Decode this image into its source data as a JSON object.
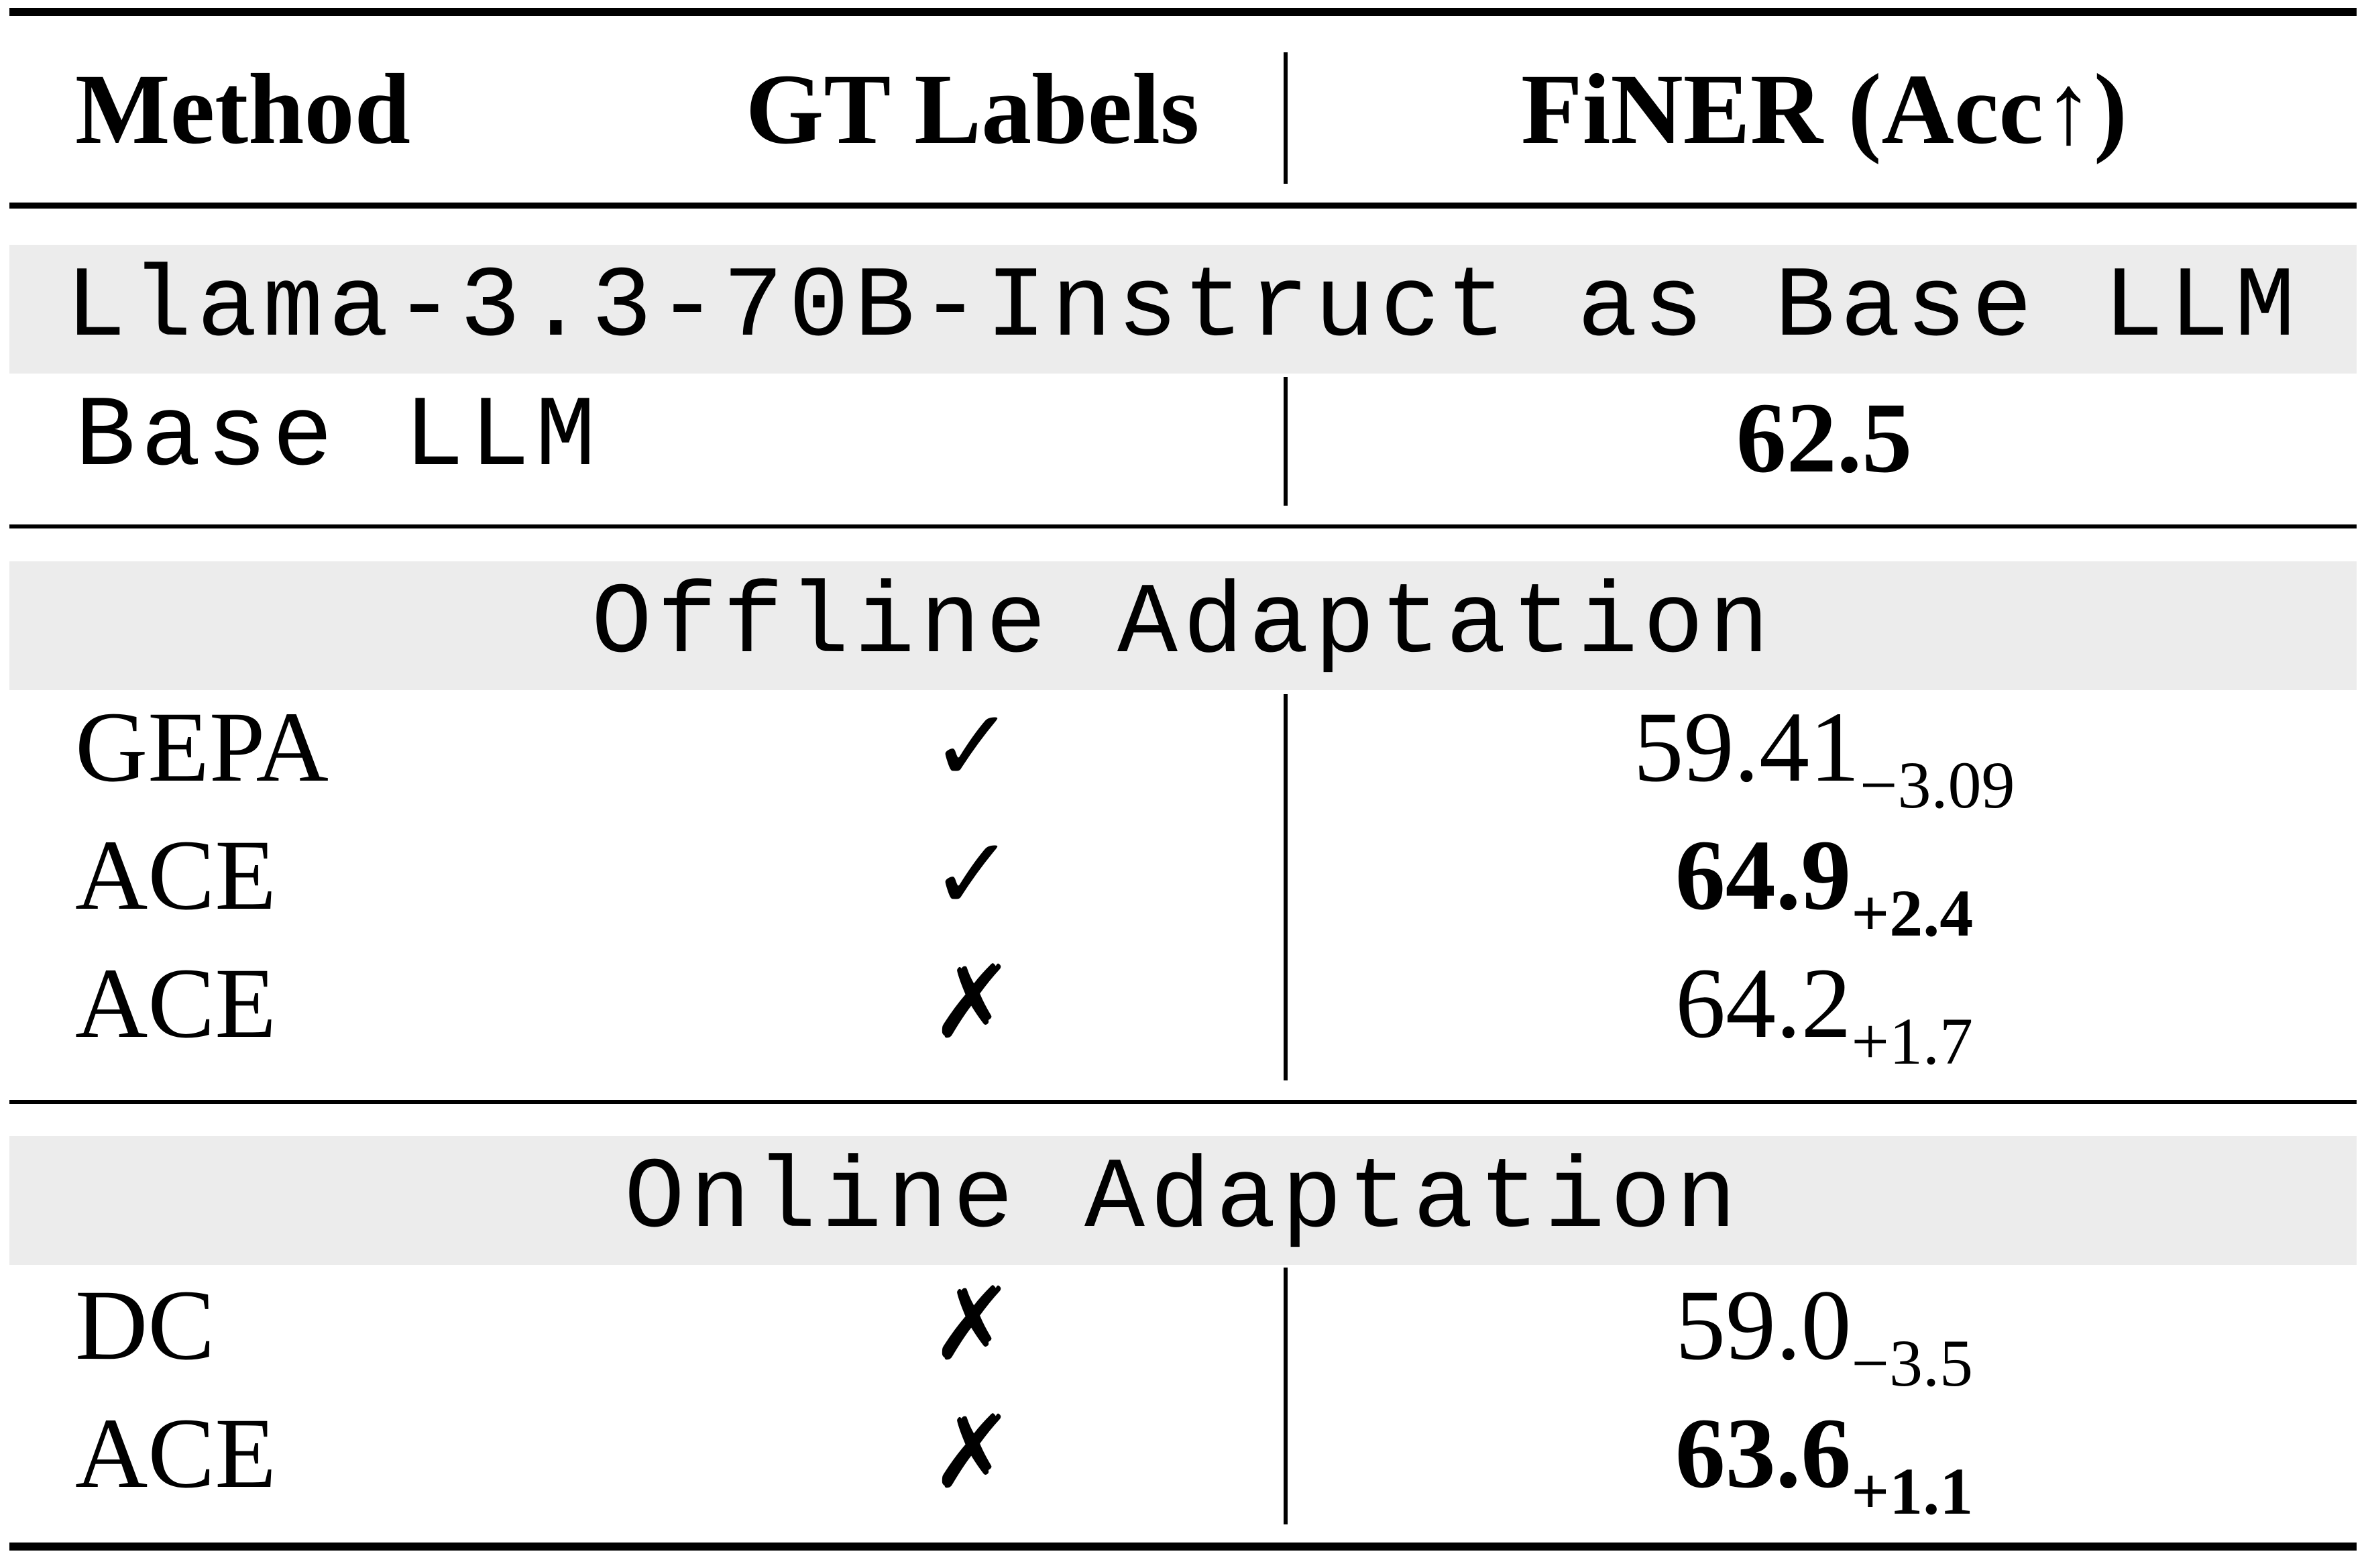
{
  "header": {
    "method": "Method",
    "gt_labels": "GT Labels",
    "finer": "FiNER (Acc↑)"
  },
  "sections": [
    {
      "title": "Llama-3.3-70B-Instruct as Base LLM",
      "rows": [
        {
          "method": "Base LLM",
          "gt": "",
          "value": "62.5",
          "delta": "",
          "bold": true,
          "mono": true
        }
      ]
    },
    {
      "title": "Offline Adaptation",
      "rows": [
        {
          "method": "GEPA",
          "gt": "✓",
          "value": "59.41",
          "delta": "−3.09",
          "bold": false
        },
        {
          "method": "ACE",
          "gt": "✓",
          "value": "64.9",
          "delta": "+2.4",
          "bold": true
        },
        {
          "method": "ACE",
          "gt": "✗",
          "value": "64.2",
          "delta": "+1.7",
          "bold": false
        }
      ]
    },
    {
      "title": "Online Adaptation",
      "rows": [
        {
          "method": "DC",
          "gt": "✗",
          "value": "59.0",
          "delta": "−3.5",
          "bold": false
        },
        {
          "method": "ACE",
          "gt": "✗",
          "value": "63.6",
          "delta": "+1.1",
          "bold": true
        }
      ]
    }
  ]
}
